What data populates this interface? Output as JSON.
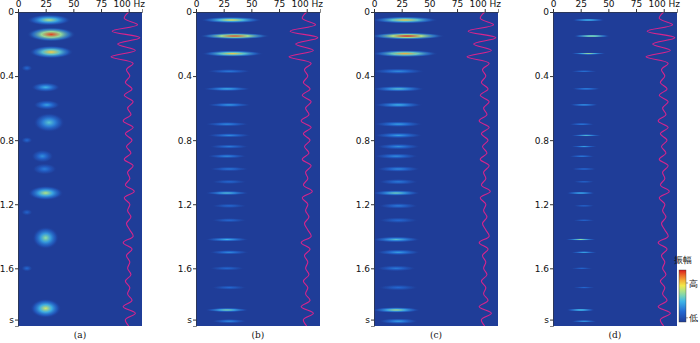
{
  "chart_data": [
    {
      "type": "heatmap",
      "title": "(a)",
      "xlim": [
        0,
        112
      ],
      "xticks": [
        0,
        25,
        50,
        75,
        {
          "value": 100,
          "label": "100 Hz"
        }
      ],
      "ylim": [
        0,
        1.96
      ],
      "yticks": [
        0,
        0.4,
        0.8,
        1.2,
        1.6,
        {
          "value": 1.92,
          "label": "s"
        }
      ],
      "blobs": {
        "t": [
          0.05,
          0.14,
          0.25,
          0.47,
          0.58,
          0.69,
          0.9,
          0.98,
          1.13,
          1.41,
          1.85,
          0.35,
          0.8,
          1.25,
          1.6
        ],
        "f": [
          28,
          30,
          30,
          25,
          26,
          28,
          22,
          24,
          25,
          25,
          25,
          8,
          8,
          8,
          8
        ],
        "amp": [
          0.6,
          0.95,
          0.75,
          0.4,
          0.35,
          0.45,
          0.3,
          0.25,
          0.6,
          0.55,
          0.65,
          0.2,
          0.2,
          0.18,
          0.2
        ],
        "dt": [
          0.035,
          0.045,
          0.04,
          0.03,
          0.03,
          0.06,
          0.04,
          0.035,
          0.045,
          0.07,
          0.06,
          0.02,
          0.02,
          0.02,
          0.02
        ],
        "df": [
          20,
          22,
          20,
          13,
          12,
          14,
          10,
          11,
          16,
          12,
          14,
          5,
          5,
          5,
          5
        ]
      },
      "trace": {
        "color": "#d6248c",
        "t": [
          0,
          0.04,
          0.08,
          0.12,
          0.16,
          0.2,
          0.24,
          0.28,
          0.32,
          0.36,
          0.4,
          0.44,
          0.48,
          0.52,
          0.56,
          0.6,
          0.64,
          0.68,
          0.72,
          0.76,
          0.8,
          0.84,
          0.88,
          0.92,
          0.96,
          1.0,
          1.04,
          1.08,
          1.12,
          1.16,
          1.2,
          1.24,
          1.28,
          1.32,
          1.36,
          1.4,
          1.44,
          1.48,
          1.52,
          1.56,
          1.6,
          1.64,
          1.68,
          1.72,
          1.76,
          1.8,
          1.84,
          1.88,
          1.92,
          1.96
        ],
        "f": [
          100,
          96,
          108,
          85,
          110,
          90,
          106,
          84,
          104,
          98,
          101,
          97,
          103,
          96,
          104,
          99,
          102,
          95,
          104,
          97,
          103,
          98,
          102,
          96,
          104,
          99,
          101,
          97,
          105,
          96,
          101,
          99,
          102,
          98,
          101,
          104,
          95,
          103,
          98,
          101,
          99,
          102,
          97,
          101,
          99,
          103,
          95,
          106,
          97,
          100
        ]
      }
    },
    {
      "type": "heatmap",
      "title": "(b)",
      "xlim": [
        0,
        112
      ],
      "xticks": [
        0,
        25,
        50,
        75,
        {
          "value": 100,
          "label": "100 Hz"
        }
      ],
      "ylim": [
        0,
        1.96
      ],
      "yticks": [
        0,
        0.4,
        0.8,
        1.2,
        1.6,
        {
          "value": 1.92,
          "label": "s"
        }
      ],
      "blobs": {
        "t": [
          0.05,
          0.15,
          0.26,
          0.37,
          0.48,
          0.58,
          0.7,
          0.77,
          0.84,
          0.9,
          0.98,
          1.06,
          1.13,
          1.21,
          1.3,
          1.42,
          1.5,
          1.6,
          1.72,
          1.86,
          1.93
        ],
        "f": [
          32,
          35,
          33,
          30,
          28,
          30,
          28,
          30,
          30,
          28,
          30,
          30,
          28,
          30,
          30,
          28,
          30,
          28,
          30,
          28,
          30
        ],
        "amp": [
          0.7,
          0.95,
          0.75,
          0.25,
          0.4,
          0.35,
          0.3,
          0.3,
          0.25,
          0.3,
          0.25,
          0.2,
          0.45,
          0.2,
          0.2,
          0.4,
          0.3,
          0.2,
          0.2,
          0.55,
          0.3
        ],
        "dt": [
          0.02,
          0.02,
          0.02,
          0.014,
          0.014,
          0.014,
          0.014,
          0.014,
          0.014,
          0.014,
          0.014,
          0.014,
          0.014,
          0.014,
          0.014,
          0.014,
          0.014,
          0.014,
          0.014,
          0.014,
          0.014
        ],
        "df": [
          28,
          32,
          28,
          20,
          22,
          20,
          20,
          20,
          18,
          18,
          18,
          16,
          20,
          16,
          16,
          20,
          18,
          16,
          16,
          20,
          16
        ]
      },
      "trace": {
        "color": "#d6248c",
        "t": [
          0,
          0.04,
          0.08,
          0.12,
          0.16,
          0.2,
          0.24,
          0.28,
          0.32,
          0.36,
          0.4,
          0.44,
          0.48,
          0.52,
          0.56,
          0.6,
          0.64,
          0.68,
          0.72,
          0.76,
          0.8,
          0.84,
          0.88,
          0.92,
          0.96,
          1.0,
          1.04,
          1.08,
          1.12,
          1.16,
          1.2,
          1.24,
          1.28,
          1.32,
          1.36,
          1.4,
          1.44,
          1.48,
          1.52,
          1.56,
          1.6,
          1.64,
          1.68,
          1.72,
          1.76,
          1.8,
          1.84,
          1.88,
          1.92,
          1.96
        ],
        "f": [
          100,
          96,
          108,
          85,
          110,
          90,
          106,
          84,
          104,
          98,
          101,
          97,
          103,
          96,
          104,
          99,
          102,
          95,
          104,
          97,
          103,
          98,
          102,
          96,
          104,
          99,
          101,
          97,
          105,
          96,
          101,
          99,
          102,
          98,
          101,
          104,
          95,
          103,
          98,
          101,
          99,
          102,
          97,
          101,
          99,
          103,
          95,
          106,
          97,
          100
        ]
      }
    },
    {
      "type": "heatmap",
      "title": "(c)",
      "xlim": [
        0,
        112
      ],
      "xticks": [
        0,
        25,
        50,
        75,
        {
          "value": 100,
          "label": "100 Hz"
        }
      ],
      "ylim": [
        0,
        1.96
      ],
      "yticks": [
        0,
        0.4,
        0.8,
        1.2,
        1.6,
        {
          "value": 1.92,
          "label": "s"
        }
      ],
      "blobs": {
        "t": [
          0.05,
          0.15,
          0.26,
          0.37,
          0.48,
          0.58,
          0.7,
          0.77,
          0.84,
          0.9,
          0.98,
          1.06,
          1.13,
          1.21,
          1.3,
          1.42,
          1.5,
          1.6,
          1.72,
          1.86,
          1.93
        ],
        "f": [
          28,
          30,
          28,
          22,
          22,
          22,
          22,
          22,
          22,
          20,
          22,
          22,
          20,
          22,
          22,
          20,
          22,
          20,
          22,
          20,
          22
        ],
        "amp": [
          0.75,
          1.0,
          0.8,
          0.3,
          0.45,
          0.4,
          0.35,
          0.35,
          0.3,
          0.3,
          0.3,
          0.25,
          0.5,
          0.25,
          0.2,
          0.45,
          0.35,
          0.25,
          0.2,
          0.6,
          0.35
        ],
        "dt": [
          0.022,
          0.022,
          0.022,
          0.018,
          0.018,
          0.018,
          0.018,
          0.018,
          0.018,
          0.018,
          0.018,
          0.018,
          0.018,
          0.018,
          0.018,
          0.018,
          0.018,
          0.018,
          0.018,
          0.018,
          0.018
        ],
        "df": [
          30,
          34,
          30,
          24,
          24,
          22,
          22,
          22,
          20,
          20,
          20,
          18,
          22,
          18,
          18,
          22,
          20,
          18,
          18,
          22,
          18
        ]
      },
      "trace": {
        "color": "#d6248c",
        "t": [
          0,
          0.04,
          0.08,
          0.12,
          0.16,
          0.2,
          0.24,
          0.28,
          0.32,
          0.36,
          0.4,
          0.44,
          0.48,
          0.52,
          0.56,
          0.6,
          0.64,
          0.68,
          0.72,
          0.76,
          0.8,
          0.84,
          0.88,
          0.92,
          0.96,
          1.0,
          1.04,
          1.08,
          1.12,
          1.16,
          1.2,
          1.24,
          1.28,
          1.32,
          1.36,
          1.4,
          1.44,
          1.48,
          1.52,
          1.56,
          1.6,
          1.64,
          1.68,
          1.72,
          1.76,
          1.8,
          1.84,
          1.88,
          1.92,
          1.96
        ],
        "f": [
          100,
          96,
          108,
          85,
          110,
          90,
          106,
          84,
          104,
          98,
          101,
          97,
          103,
          96,
          104,
          99,
          102,
          95,
          104,
          97,
          103,
          98,
          102,
          96,
          104,
          99,
          101,
          97,
          105,
          96,
          101,
          99,
          102,
          98,
          101,
          104,
          95,
          103,
          98,
          101,
          99,
          102,
          97,
          101,
          99,
          103,
          95,
          106,
          97,
          100
        ]
      }
    },
    {
      "type": "heatmap",
      "title": "(d)",
      "xlim": [
        0,
        112
      ],
      "xticks": [
        0,
        25,
        50,
        75,
        {
          "value": 100,
          "label": "100 Hz"
        }
      ],
      "ylim": [
        0,
        1.96
      ],
      "yticks": [
        0,
        0.4,
        0.8,
        1.2,
        1.6,
        {
          "value": 1.92,
          "label": "s"
        }
      ],
      "blobs": {
        "t": [
          0.05,
          0.15,
          0.26,
          0.37,
          0.48,
          0.58,
          0.7,
          0.77,
          0.84,
          0.9,
          0.98,
          1.06,
          1.13,
          1.21,
          1.3,
          1.42,
          1.5,
          1.6,
          1.72,
          1.86,
          1.93
        ],
        "f": [
          32,
          35,
          32,
          28,
          30,
          28,
          26,
          30,
          28,
          26,
          28,
          28,
          25,
          28,
          28,
          25,
          28,
          26,
          28,
          25,
          28
        ],
        "amp": [
          0.55,
          0.8,
          0.6,
          0.25,
          0.35,
          0.4,
          0.3,
          0.45,
          0.35,
          0.3,
          0.25,
          0.2,
          0.5,
          0.2,
          0.2,
          0.55,
          0.4,
          0.2,
          0.2,
          0.6,
          0.4
        ],
        "dt": [
          0.008,
          0.008,
          0.008,
          0.008,
          0.008,
          0.008,
          0.008,
          0.008,
          0.008,
          0.008,
          0.008,
          0.008,
          0.008,
          0.008,
          0.008,
          0.008,
          0.008,
          0.008,
          0.008,
          0.008,
          0.008
        ],
        "df": [
          16,
          18,
          16,
          12,
          14,
          14,
          12,
          14,
          12,
          12,
          12,
          10,
          14,
          10,
          10,
          14,
          12,
          10,
          10,
          14,
          12
        ]
      },
      "trace": {
        "color": "#d6248c",
        "t": [
          0,
          0.04,
          0.08,
          0.12,
          0.16,
          0.2,
          0.24,
          0.28,
          0.32,
          0.36,
          0.4,
          0.44,
          0.48,
          0.52,
          0.56,
          0.6,
          0.64,
          0.68,
          0.72,
          0.76,
          0.8,
          0.84,
          0.88,
          0.92,
          0.96,
          1.0,
          1.04,
          1.08,
          1.12,
          1.16,
          1.2,
          1.24,
          1.28,
          1.32,
          1.36,
          1.4,
          1.44,
          1.48,
          1.52,
          1.56,
          1.6,
          1.64,
          1.68,
          1.72,
          1.76,
          1.8,
          1.84,
          1.88,
          1.92,
          1.96
        ],
        "f": [
          100,
          96,
          108,
          85,
          110,
          90,
          106,
          84,
          104,
          98,
          101,
          97,
          103,
          96,
          104,
          99,
          102,
          95,
          104,
          97,
          103,
          98,
          102,
          96,
          104,
          99,
          101,
          97,
          105,
          96,
          101,
          99,
          102,
          98,
          101,
          104,
          95,
          103,
          98,
          101,
          99,
          102,
          97,
          101,
          99,
          103,
          95,
          106,
          97,
          100
        ]
      },
      "colorbar": {
        "title": "振幅",
        "range": [
          0,
          1
        ],
        "ticks": [
          {
            "value": 0.75,
            "label": "高"
          },
          {
            "value": 0.08,
            "label": "低"
          }
        ]
      }
    }
  ]
}
